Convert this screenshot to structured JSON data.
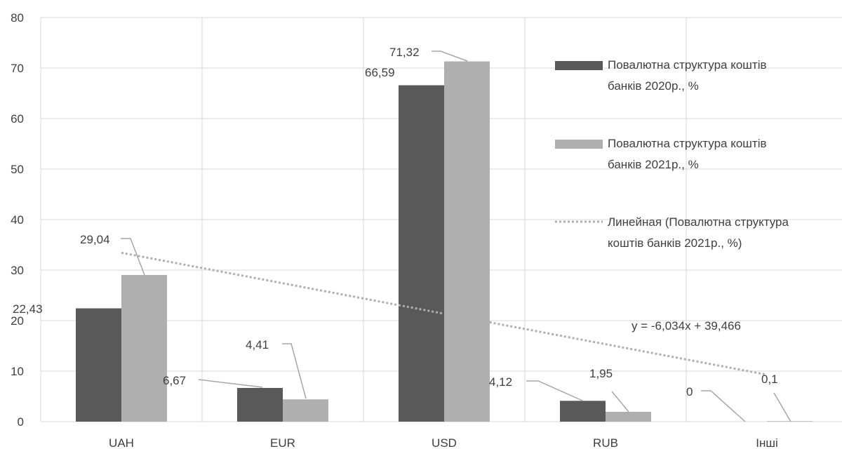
{
  "chart_data": {
    "type": "bar",
    "categories": [
      "UAH",
      "EUR",
      "USD",
      "RUB",
      "Інші"
    ],
    "series": [
      {
        "name": "Повалютна структура коштів банків 2020р., %",
        "values": [
          22.43,
          6.67,
          66.59,
          4.12,
          0
        ],
        "labels": [
          "22,43",
          "6,67",
          "66,59",
          "4,12",
          "0"
        ],
        "color": "#595959"
      },
      {
        "name": "Повалютна структура коштів банків 2021р., %",
        "values": [
          29.04,
          4.41,
          71.32,
          1.95,
          0.1
        ],
        "labels": [
          "29,04",
          "4,41",
          "71,32",
          "1,95",
          "0,1"
        ],
        "color": "#afafaf"
      }
    ],
    "trendline": {
      "name": "Линейная (Повалютна структура коштів банків 2021р., %)",
      "type": "linear",
      "slope": -6.034,
      "intercept": 39.466,
      "equation": "y = -6,034x + 39,466",
      "color": "#afafaf"
    },
    "ylim": [
      0,
      80
    ],
    "yticks": [
      "0",
      "10",
      "20",
      "30",
      "40",
      "50",
      "60",
      "70",
      "80"
    ],
    "grid": true,
    "legend_position": "right",
    "legend_lines": [
      [
        "Повалютна структура коштів",
        "банків 2020р., %"
      ],
      [
        "Повалютна структура коштів",
        "банків 2021р., %"
      ],
      [
        "Линейная (Повалютна структура",
        "коштів банків 2021р., %)"
      ]
    ],
    "title": "",
    "xlabel": "",
    "ylabel": ""
  }
}
